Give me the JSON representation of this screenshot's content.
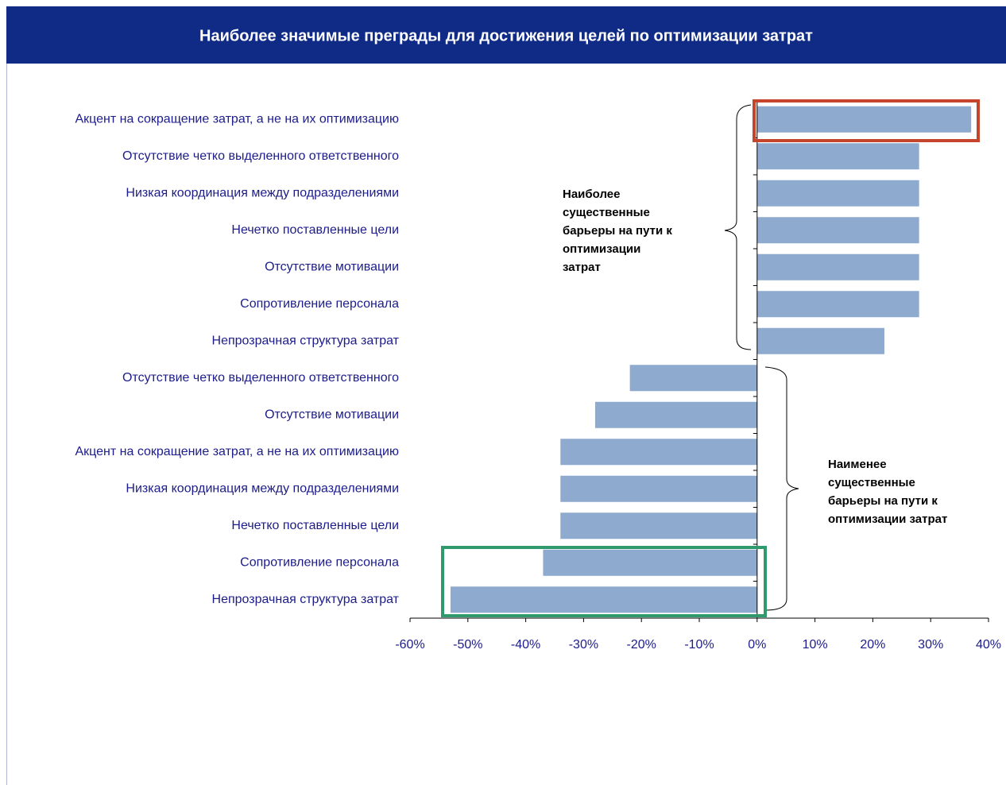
{
  "chart_data": {
    "type": "bar",
    "orientation": "horizontal",
    "title": "Наиболее значимые преграды для достижения  целей по оптимизации затрат",
    "categories": [
      "Акцент на сокращение затрат, а не на их оптимизацию",
      "Отсутствие четко выделенного ответственного",
      "Низкая координация между подразделениями",
      "Нечетко поставленные цели",
      "Отсутствие мотивации",
      "Сопротивление персонала",
      "Непрозрачная структура затрат",
      "Отсутствие четко выделенного ответственного",
      "Отсутствие мотивации",
      "Акцент на сокращение затрат, а не на их оптимизацию",
      "Низкая координация между подразделениями",
      "Нечетко поставленные цели",
      "Сопротивление персонала",
      "Непрозрачная структура затрат"
    ],
    "values": [
      37,
      28,
      28,
      28,
      28,
      28,
      22,
      -22,
      -28,
      -34,
      -34,
      -34,
      -37,
      -53
    ],
    "color": "#8eaacf",
    "xlim": [
      -60,
      40
    ],
    "xticks": [
      {
        "value": -60,
        "label": "-60%"
      },
      {
        "value": -50,
        "label": "-50%"
      },
      {
        "value": -40,
        "label": "-40%"
      },
      {
        "value": -30,
        "label": "-30%"
      },
      {
        "value": -20,
        "label": "-20%"
      },
      {
        "value": -10,
        "label": "-10%"
      },
      {
        "value": 0,
        "label": "0%"
      },
      {
        "value": 10,
        "label": "10%"
      },
      {
        "value": 20,
        "label": "20%"
      },
      {
        "value": 30,
        "label": "30%"
      },
      {
        "value": 40,
        "label": "40%"
      }
    ],
    "grid": false,
    "annotations": [
      {
        "lines": [
          "Наиболее",
          "существенные",
          "барьеры на пути к",
          "оптимизации",
          "затрат"
        ]
      },
      {
        "lines": [
          "Наименее",
          "существенные",
          "барьеры на пути к",
          "оптимизации затрат"
        ]
      }
    ]
  }
}
